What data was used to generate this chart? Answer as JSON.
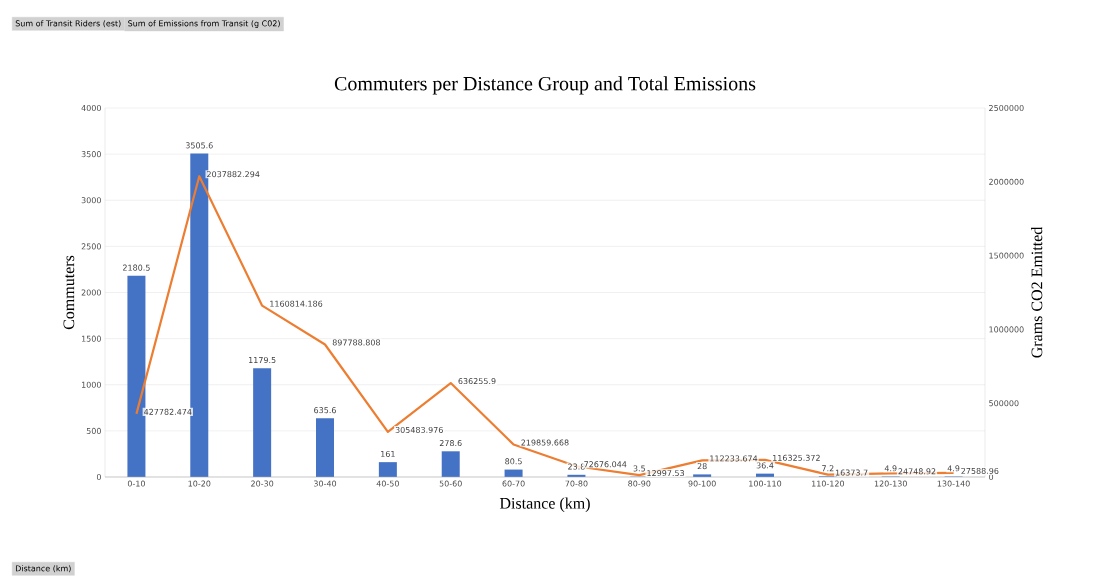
{
  "chart_data": {
    "type": "bar",
    "title": "Commuters per Distance Group and Total Emissions",
    "xlabel": "Distance (km)",
    "ylabel": "Commuters",
    "y2label": "Grams CO2 Emitted",
    "categories": [
      "0-10",
      "10-20",
      "20-30",
      "30-40",
      "40-50",
      "50-60",
      "60-70",
      "70-80",
      "80-90",
      "90-100",
      "100-110",
      "110-120",
      "120-130",
      "130-140"
    ],
    "series": [
      {
        "type": "bar",
        "color": "#4472c4",
        "values": [
          2180.5,
          3505.6,
          1179.5,
          635.6,
          161,
          278.6,
          80.5,
          23.8,
          3.5,
          28,
          36.4,
          7.2,
          4.9,
          4.9
        ]
      },
      {
        "type": "line",
        "axis": "y2",
        "color": "#ed7d31",
        "values": [
          427782.474,
          2037882.294,
          1160814.186,
          897788.808,
          305483.976,
          636255.9,
          219859.668,
          72676.044,
          12997.53,
          112233.674,
          116325.372,
          16373.7,
          24748.92,
          27588.96
        ]
      }
    ],
    "ylim": [
      0,
      4000
    ],
    "yticks": [
      0,
      500,
      1000,
      1500,
      2000,
      2500,
      3000,
      3500,
      4000
    ],
    "y2lim": [
      0,
      2500000
    ],
    "y2ticks": [
      0,
      500000,
      1000000,
      1500000,
      2000000,
      2500000
    ],
    "grid": "y",
    "data_labels": true,
    "marker": "none",
    "line_style": "solid",
    "annotations": [
      "Sum of Transit Riders (est)",
      "Sum of Emissions from Transit (g C02)",
      "Distance (km)"
    ]
  }
}
